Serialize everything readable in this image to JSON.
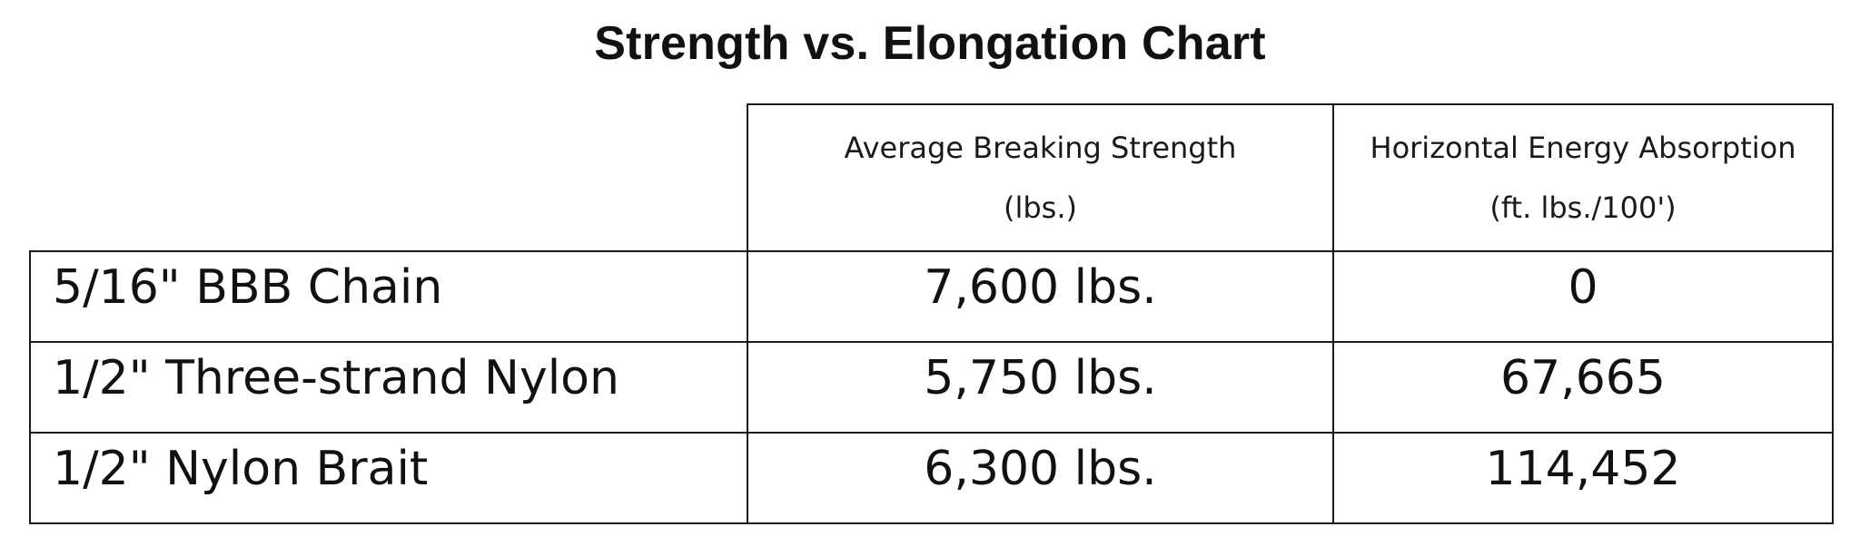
{
  "title": "Strength vs. Elongation Chart",
  "columns": [
    {
      "line1": "Average Breaking Strength",
      "line2": "(lbs.)"
    },
    {
      "line1": "Horizontal Energy Absorption",
      "line2": "(ft. lbs./100')"
    }
  ],
  "rows": [
    {
      "label": "5/16\" BBB Chain",
      "strength": "7,600 lbs.",
      "absorption": "0"
    },
    {
      "label": "1/2\" Three-strand Nylon",
      "strength": "5,750 lbs.",
      "absorption": "67,665"
    },
    {
      "label": "1/2\" Nylon Brait",
      "strength": "6,300 lbs.",
      "absorption": "114,452"
    }
  ]
}
